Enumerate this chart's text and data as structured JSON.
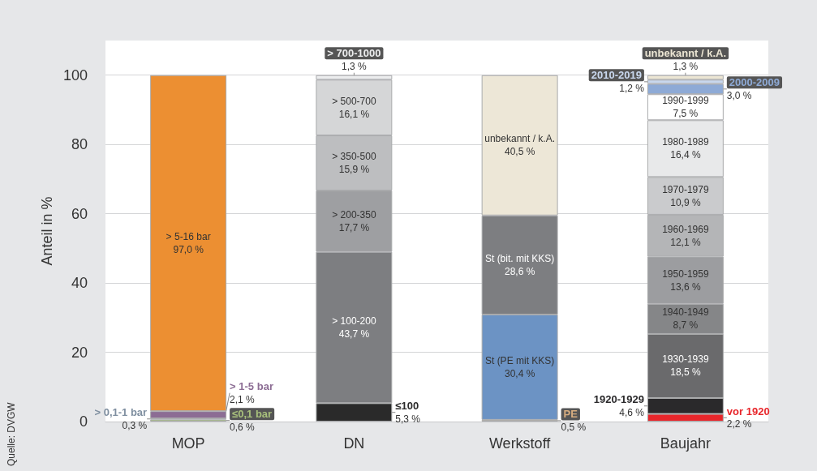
{
  "chart_data": {
    "type": "bar",
    "stacked": true,
    "ylabel": "Anteil in %",
    "categories": [
      "MOP",
      "DN",
      "Werkstoff",
      "Baujahr"
    ],
    "ylim": [
      0,
      110
    ],
    "yticks": [
      0,
      20,
      40,
      60,
      80,
      100
    ],
    "grid": "y",
    "legend": false,
    "annotations": [
      "Quelle: DVGW"
    ],
    "series": [
      {
        "name": "≤0,1 bar",
        "color": "#a8c07c",
        "values": [
          0.6,
          null,
          null,
          null
        ],
        "value_labels": [
          "0,6 %",
          null,
          null,
          null
        ]
      },
      {
        "name": "> 0,1-1 bar",
        "color": "#7f8fa0",
        "values": [
          0.3,
          null,
          null,
          null
        ],
        "value_labels": [
          "0,3 %",
          null,
          null,
          null
        ]
      },
      {
        "name": "> 1-5 bar",
        "color": "#8c6d94",
        "values": [
          2.1,
          null,
          null,
          null
        ],
        "value_labels": [
          "2,1 %",
          null,
          null,
          null
        ]
      },
      {
        "name": "> 5-16 bar",
        "color": "#ec8f32",
        "values": [
          97.0,
          null,
          null,
          null
        ],
        "value_labels": [
          "97,0 %",
          null,
          null,
          null
        ]
      },
      {
        "name": "≤100",
        "color": "#2a2a2a",
        "values": [
          null,
          5.3,
          null,
          null
        ],
        "value_labels": [
          null,
          "5,3 %",
          null,
          null
        ]
      },
      {
        "name": "> 100-200",
        "color": "#7d7e81",
        "values": [
          null,
          43.7,
          null,
          null
        ],
        "value_labels": [
          null,
          "43,7 %",
          null,
          null
        ]
      },
      {
        "name": "> 200-350",
        "color": "#9e9fa2",
        "values": [
          null,
          17.7,
          null,
          null
        ],
        "value_labels": [
          null,
          "17,7 %",
          null,
          null
        ]
      },
      {
        "name": "> 350-500",
        "color": "#bdbec0",
        "values": [
          null,
          15.9,
          null,
          null
        ],
        "value_labels": [
          null,
          "15,9 %",
          null,
          null
        ]
      },
      {
        "name": "> 500-700",
        "color": "#d5d6d7",
        "values": [
          null,
          16.1,
          null,
          null
        ],
        "value_labels": [
          null,
          "16,1 %",
          null,
          null
        ]
      },
      {
        "name": "> 700-1000",
        "color": "#ecedee",
        "values": [
          null,
          1.3,
          null,
          null
        ],
        "value_labels": [
          null,
          "1,3 %",
          null,
          null
        ]
      },
      {
        "name": "PE",
        "color": "#d8ae80",
        "values": [
          null,
          null,
          0.5,
          null
        ],
        "value_labels": [
          null,
          null,
          "0,5 %",
          null
        ]
      },
      {
        "name": "St (PE mit KKS)",
        "color": "#6c93c4",
        "values": [
          null,
          null,
          30.4,
          null
        ],
        "value_labels": [
          null,
          null,
          "30,4 %",
          null
        ]
      },
      {
        "name": "St (bit. mit KKS)",
        "color": "#7d7e81",
        "values": [
          null,
          null,
          28.6,
          null
        ],
        "value_labels": [
          null,
          null,
          "28,6 %",
          null
        ]
      },
      {
        "name": "unbekannt / k.A.",
        "color": "#ede7d7",
        "values": [
          null,
          null,
          40.5,
          null
        ],
        "value_labels": [
          null,
          null,
          "40,5 %",
          null
        ]
      },
      {
        "name": "vor 1920",
        "color": "#e8262b",
        "values": [
          null,
          null,
          null,
          2.2
        ],
        "value_labels": [
          null,
          null,
          null,
          "2,2 %"
        ]
      },
      {
        "name": "1920-1929",
        "color": "#2a292b",
        "values": [
          null,
          null,
          null,
          4.6
        ],
        "value_labels": [
          null,
          null,
          null,
          "4,6 %"
        ]
      },
      {
        "name": "1930-1939",
        "color": "#6a6a6c",
        "values": [
          null,
          null,
          null,
          18.5
        ],
        "value_labels": [
          null,
          null,
          null,
          "18,5 %"
        ]
      },
      {
        "name": "1940-1949",
        "color": "#858688",
        "values": [
          null,
          null,
          null,
          8.7
        ],
        "value_labels": [
          null,
          null,
          null,
          "8,7 %"
        ]
      },
      {
        "name": "1950-1959",
        "color": "#9c9da0",
        "values": [
          null,
          null,
          null,
          13.6
        ],
        "value_labels": [
          null,
          null,
          null,
          "13,6 %"
        ]
      },
      {
        "name": "1960-1969",
        "color": "#b4b5b7",
        "values": [
          null,
          null,
          null,
          12.1
        ],
        "value_labels": [
          null,
          null,
          null,
          "12,1 %"
        ]
      },
      {
        "name": "1970-1979",
        "color": "#cacbcd",
        "values": [
          null,
          null,
          null,
          10.9
        ],
        "value_labels": [
          null,
          null,
          null,
          "10,9 %"
        ]
      },
      {
        "name": "1980-1989",
        "color": "#e8e9ea",
        "values": [
          null,
          null,
          null,
          16.4
        ],
        "value_labels": [
          null,
          null,
          null,
          "16,4 %"
        ]
      },
      {
        "name": "1990-1999",
        "color": "#ffffff",
        "values": [
          null,
          null,
          null,
          7.5
        ],
        "value_labels": [
          null,
          null,
          null,
          "7,5 %"
        ]
      },
      {
        "name": "2000-2009",
        "color": "#8eaad6",
        "values": [
          null,
          null,
          null,
          3.0
        ],
        "value_labels": [
          null,
          null,
          null,
          "3,0 %"
        ]
      },
      {
        "name": "2010-2019",
        "color": "#c9d8ee",
        "values": [
          null,
          null,
          null,
          1.2
        ],
        "value_labels": [
          null,
          null,
          null,
          "1,2 %"
        ]
      },
      {
        "name": "unbekannt / k.A.",
        "color": "#ece6d4",
        "values": [
          null,
          null,
          null,
          1.3
        ],
        "value_labels": [
          null,
          null,
          null,
          "1,3 %"
        ]
      }
    ]
  }
}
